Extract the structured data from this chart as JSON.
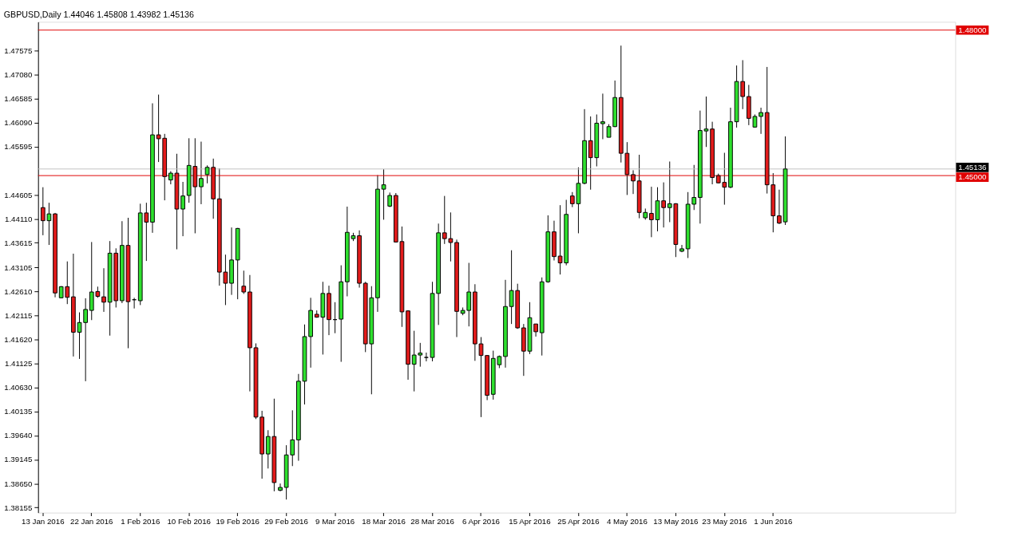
{
  "chart_data": {
    "type": "candlestick",
    "title": "GBPUSD,Daily 1.44046 1.45808 1.43982 1.45136",
    "categories": [
      "13 Jan 2016",
      null,
      null,
      null,
      null,
      null,
      null,
      null,
      "22 Jan 2016",
      null,
      null,
      null,
      null,
      null,
      null,
      null,
      "1 Feb 2016",
      null,
      null,
      null,
      null,
      null,
      null,
      null,
      "10 Feb 2016",
      null,
      null,
      null,
      null,
      null,
      null,
      null,
      "19 Feb 2016",
      null,
      null,
      null,
      null,
      null,
      null,
      null,
      "29 Feb 2016",
      null,
      null,
      null,
      null,
      null,
      null,
      null,
      "9 Mar 2016",
      null,
      null,
      null,
      null,
      null,
      null,
      null,
      "18 Mar 2016",
      null,
      null,
      null,
      null,
      null,
      null,
      null,
      "28 Mar 2016",
      null,
      null,
      null,
      null,
      null,
      null,
      null,
      "6 Apr 2016",
      null,
      null,
      null,
      null,
      null,
      null,
      null,
      "15 Apr 2016",
      null,
      null,
      null,
      null,
      null,
      null,
      null,
      "25 Apr 2016",
      null,
      null,
      null,
      null,
      null,
      null,
      null,
      "4 May 2016",
      null,
      null,
      null,
      null,
      null,
      null,
      null,
      "13 May 2016",
      null,
      null,
      null,
      null,
      null,
      null,
      null,
      "23 May 2016",
      null,
      null,
      null,
      null,
      null,
      null,
      null,
      "1 Jun 2016",
      null,
      null
    ],
    "ohlc": [
      [
        1.4434,
        1.4476,
        1.4377,
        1.4407
      ],
      [
        1.4407,
        1.4444,
        1.4357,
        1.4421
      ],
      [
        1.4421,
        1.4423,
        1.4249,
        1.4258
      ],
      [
        1.4248,
        1.4272,
        1.4247,
        1.4271
      ],
      [
        1.4271,
        1.4323,
        1.4235,
        1.4249
      ],
      [
        1.425,
        1.4339,
        1.4127,
        1.4177
      ],
      [
        1.4177,
        1.4218,
        1.4122,
        1.4197
      ],
      [
        1.4197,
        1.4247,
        1.4076,
        1.4224
      ],
      [
        1.4222,
        1.4363,
        1.4202,
        1.426
      ],
      [
        1.4261,
        1.4271,
        1.4248,
        1.4251
      ],
      [
        1.425,
        1.4309,
        1.4219,
        1.4239
      ],
      [
        1.4239,
        1.4365,
        1.417,
        1.434
      ],
      [
        1.434,
        1.435,
        1.4228,
        1.4242
      ],
      [
        1.4242,
        1.4406,
        1.4237,
        1.4356
      ],
      [
        1.4356,
        1.4413,
        1.4144,
        1.424
      ],
      [
        1.4244,
        1.4248,
        1.4226,
        1.4244
      ],
      [
        1.4242,
        1.4442,
        1.4233,
        1.4423
      ],
      [
        1.4423,
        1.4444,
        1.4324,
        1.4404
      ],
      [
        1.4404,
        1.4649,
        1.4382,
        1.4584
      ],
      [
        1.4584,
        1.4667,
        1.4528,
        1.4576
      ],
      [
        1.4577,
        1.4586,
        1.4449,
        1.4498
      ],
      [
        1.4491,
        1.4509,
        1.4482,
        1.4505
      ],
      [
        1.4505,
        1.4545,
        1.4348,
        1.4431
      ],
      [
        1.4431,
        1.4487,
        1.4375,
        1.4458
      ],
      [
        1.4459,
        1.4577,
        1.4444,
        1.4521
      ],
      [
        1.4519,
        1.4577,
        1.4381,
        1.4477
      ],
      [
        1.4477,
        1.457,
        1.4441,
        1.4494
      ],
      [
        1.4502,
        1.4521,
        1.4484,
        1.4517
      ],
      [
        1.4517,
        1.4535,
        1.4411,
        1.4452
      ],
      [
        1.4452,
        1.4515,
        1.4273,
        1.4301
      ],
      [
        1.4301,
        1.4337,
        1.4233,
        1.4278
      ],
      [
        1.4278,
        1.4393,
        1.4254,
        1.4326
      ],
      [
        1.4326,
        1.4392,
        1.4245,
        1.4391
      ],
      [
        1.4272,
        1.4304,
        1.4256,
        1.426
      ],
      [
        1.426,
        1.4295,
        1.4055,
        1.4145
      ],
      [
        1.4145,
        1.4154,
        1.3998,
        1.4002
      ],
      [
        1.4002,
        1.4015,
        1.3875,
        1.3926
      ],
      [
        1.3926,
        1.3975,
        1.3896,
        1.3962
      ],
      [
        1.3962,
        1.404,
        1.3849,
        1.3867
      ],
      [
        1.3851,
        1.3865,
        1.3849,
        1.3857
      ],
      [
        1.3857,
        1.3944,
        1.3832,
        1.3924
      ],
      [
        1.3924,
        1.4016,
        1.3901,
        1.3955
      ],
      [
        1.3955,
        1.4091,
        1.3912,
        1.4076
      ],
      [
        1.4076,
        1.4193,
        1.4028,
        1.4168
      ],
      [
        1.4168,
        1.4248,
        1.4104,
        1.4222
      ],
      [
        1.4214,
        1.4222,
        1.4207,
        1.4208
      ],
      [
        1.4208,
        1.4281,
        1.4131,
        1.4257
      ],
      [
        1.4257,
        1.4273,
        1.4171,
        1.4203
      ],
      [
        1.4203,
        1.4239,
        1.4175,
        1.4203
      ],
      [
        1.4204,
        1.4315,
        1.4116,
        1.4281
      ],
      [
        1.4281,
        1.4436,
        1.4251,
        1.4383
      ],
      [
        1.437,
        1.4382,
        1.4365,
        1.4376
      ],
      [
        1.4376,
        1.4387,
        1.4269,
        1.4278
      ],
      [
        1.4278,
        1.4281,
        1.4136,
        1.4153
      ],
      [
        1.4153,
        1.4272,
        1.4049,
        1.4248
      ],
      [
        1.4248,
        1.4501,
        1.4219,
        1.4472
      ],
      [
        1.4472,
        1.4513,
        1.4409,
        1.4481
      ],
      [
        1.4437,
        1.4465,
        1.4435,
        1.4459
      ],
      [
        1.4459,
        1.4464,
        1.4362,
        1.4363
      ],
      [
        1.4364,
        1.4395,
        1.4188,
        1.4219
      ],
      [
        1.4221,
        1.4222,
        1.4079,
        1.4111
      ],
      [
        1.4111,
        1.418,
        1.4055,
        1.413
      ],
      [
        1.413,
        1.4155,
        1.4106,
        1.4134
      ],
      [
        1.4125,
        1.4135,
        1.4117,
        1.4125
      ],
      [
        1.4125,
        1.4281,
        1.4117,
        1.4257
      ],
      [
        1.4257,
        1.4401,
        1.4192,
        1.4382
      ],
      [
        1.4382,
        1.4458,
        1.4359,
        1.437
      ],
      [
        1.437,
        1.4424,
        1.4323,
        1.4362
      ],
      [
        1.4362,
        1.4368,
        1.4167,
        1.422
      ],
      [
        1.4216,
        1.4228,
        1.4212,
        1.4222
      ],
      [
        1.4222,
        1.432,
        1.4189,
        1.426
      ],
      [
        1.426,
        1.4276,
        1.4118,
        1.4153
      ],
      [
        1.4153,
        1.4167,
        1.4002,
        1.4129
      ],
      [
        1.4129,
        1.413,
        1.4037,
        1.4047
      ],
      [
        1.4049,
        1.4139,
        1.4038,
        1.4123
      ],
      [
        1.411,
        1.4129,
        1.4103,
        1.4127
      ],
      [
        1.4127,
        1.4285,
        1.4104,
        1.423
      ],
      [
        1.423,
        1.4346,
        1.4194,
        1.4263
      ],
      [
        1.4263,
        1.4277,
        1.4184,
        1.4186
      ],
      [
        1.4186,
        1.4194,
        1.4087,
        1.4138
      ],
      [
        1.4138,
        1.4239,
        1.4132,
        1.4207
      ],
      [
        1.4194,
        1.4194,
        1.4168,
        1.4178
      ],
      [
        1.4176,
        1.429,
        1.4129,
        1.4281
      ],
      [
        1.4281,
        1.4418,
        1.4279,
        1.4384
      ],
      [
        1.4384,
        1.4407,
        1.4325,
        1.4333
      ],
      [
        1.4334,
        1.4439,
        1.4296,
        1.432
      ],
      [
        1.432,
        1.445,
        1.4315,
        1.442
      ],
      [
        1.4458,
        1.4466,
        1.4435,
        1.4442
      ],
      [
        1.4442,
        1.4517,
        1.4381,
        1.4484
      ],
      [
        1.4484,
        1.4637,
        1.4482,
        1.4572
      ],
      [
        1.4572,
        1.4622,
        1.4471,
        1.4537
      ],
      [
        1.4537,
        1.4626,
        1.4519,
        1.4608
      ],
      [
        1.4607,
        1.4669,
        1.4575,
        1.4611
      ],
      [
        1.4579,
        1.4606,
        1.4579,
        1.4601
      ],
      [
        1.4601,
        1.4696,
        1.46,
        1.4661
      ],
      [
        1.4661,
        1.4768,
        1.4527,
        1.4546
      ],
      [
        1.4546,
        1.4569,
        1.446,
        1.4502
      ],
      [
        1.4502,
        1.4511,
        1.4462,
        1.4489
      ],
      [
        1.4489,
        1.4543,
        1.4412,
        1.4424
      ],
      [
        1.4413,
        1.4432,
        1.4409,
        1.4424
      ],
      [
        1.4422,
        1.4477,
        1.4373,
        1.4409
      ],
      [
        1.4409,
        1.4476,
        1.4385,
        1.4448
      ],
      [
        1.4448,
        1.4486,
        1.4393,
        1.4434
      ],
      [
        1.4434,
        1.4529,
        1.4404,
        1.4442
      ],
      [
        1.4442,
        1.4443,
        1.4332,
        1.4358
      ],
      [
        1.4344,
        1.4357,
        1.4342,
        1.4349
      ],
      [
        1.4349,
        1.4466,
        1.433,
        1.4441
      ],
      [
        1.4441,
        1.4522,
        1.4429,
        1.4455
      ],
      [
        1.4455,
        1.4634,
        1.4401,
        1.4593
      ],
      [
        1.4592,
        1.4663,
        1.4559,
        1.4596
      ],
      [
        1.4596,
        1.4611,
        1.4482,
        1.4496
      ],
      [
        1.45,
        1.4504,
        1.4484,
        1.4485
      ],
      [
        1.4486,
        1.4547,
        1.444,
        1.4476
      ],
      [
        1.4476,
        1.464,
        1.4474,
        1.4611
      ],
      [
        1.4611,
        1.4727,
        1.4599,
        1.4694
      ],
      [
        1.4694,
        1.4738,
        1.4637,
        1.4663
      ],
      [
        1.4663,
        1.4687,
        1.4604,
        1.4618
      ],
      [
        1.46,
        1.4626,
        1.4599,
        1.4622
      ],
      [
        1.4622,
        1.464,
        1.4586,
        1.463
      ],
      [
        1.463,
        1.4724,
        1.4463,
        1.4481
      ],
      [
        1.4481,
        1.4505,
        1.4383,
        1.4417
      ],
      [
        1.4417,
        1.4471,
        1.44,
        1.4402
      ],
      [
        1.44046,
        1.45808,
        1.43982,
        1.45136
      ]
    ],
    "colors": [
      "#e21b1b",
      "#2ee02e",
      "#e21b1b",
      "#2ee02e",
      "#e21b1b",
      "#e21b1b",
      "#2ee02e",
      "#2ee02e",
      "#2ee02e",
      "#e21b1b",
      "#e21b1b",
      "#2ee02e",
      "#e21b1b",
      "#2ee02e",
      "#e21b1b",
      "#000000",
      "#2ee02e",
      "#e21b1b",
      "#2ee02e",
      "#e21b1b",
      "#e21b1b",
      "#2ee02e",
      "#e21b1b",
      "#2ee02e",
      "#2ee02e",
      "#e21b1b",
      "#2ee02e",
      "#2ee02e",
      "#e21b1b",
      "#e21b1b",
      "#e21b1b",
      "#2ee02e",
      "#2ee02e",
      "#e21b1b",
      "#e21b1b",
      "#e21b1b",
      "#e21b1b",
      "#2ee02e",
      "#e21b1b",
      "#2ee02e",
      "#2ee02e",
      "#2ee02e",
      "#2ee02e",
      "#2ee02e",
      "#2ee02e",
      "#e21b1b",
      "#2ee02e",
      "#e21b1b",
      "#000000",
      "#2ee02e",
      "#2ee02e",
      "#2ee02e",
      "#e21b1b",
      "#e21b1b",
      "#2ee02e",
      "#2ee02e",
      "#2ee02e",
      "#2ee02e",
      "#e21b1b",
      "#e21b1b",
      "#e21b1b",
      "#2ee02e",
      "#2ee02e",
      "#000000",
      "#2ee02e",
      "#2ee02e",
      "#e21b1b",
      "#e21b1b",
      "#e21b1b",
      "#2ee02e",
      "#2ee02e",
      "#e21b1b",
      "#e21b1b",
      "#e21b1b",
      "#2ee02e",
      "#2ee02e",
      "#2ee02e",
      "#2ee02e",
      "#e21b1b",
      "#e21b1b",
      "#2ee02e",
      "#e21b1b",
      "#2ee02e",
      "#2ee02e",
      "#e21b1b",
      "#e21b1b",
      "#2ee02e",
      "#e21b1b",
      "#2ee02e",
      "#2ee02e",
      "#e21b1b",
      "#2ee02e",
      "#2ee02e",
      "#2ee02e",
      "#2ee02e",
      "#e21b1b",
      "#e21b1b",
      "#e21b1b",
      "#e21b1b",
      "#2ee02e",
      "#e21b1b",
      "#2ee02e",
      "#e21b1b",
      "#2ee02e",
      "#e21b1b",
      "#2ee02e",
      "#2ee02e",
      "#2ee02e",
      "#2ee02e",
      "#2ee02e",
      "#e21b1b",
      "#e21b1b",
      "#e21b1b",
      "#2ee02e",
      "#2ee02e",
      "#e21b1b",
      "#e21b1b",
      "#2ee02e",
      "#2ee02e",
      "#e21b1b",
      "#e21b1b",
      "#e21b1b",
      "#2ee02e"
    ],
    "ylim": [
      1.3805,
      1.4817
    ],
    "yticks": [
      1.47575,
      {
        "value": 1.4708,
        "label": "1.47080"
      },
      1.46585,
      {
        "value": 1.4609,
        "label": "1.46090"
      },
      1.45595,
      1.44605,
      {
        "value": 1.4411,
        "label": "1.44110"
      },
      1.43615,
      1.43105,
      {
        "value": 1.4261,
        "label": "1.42610"
      },
      1.42115,
      {
        "value": 1.4162,
        "label": "1.41620"
      },
      1.41125,
      {
        "value": 1.4063,
        "label": "1.40630"
      },
      1.40135,
      {
        "value": 1.3964,
        "label": "1.39640"
      },
      1.39145,
      {
        "value": 1.3865,
        "label": "1.38650"
      },
      1.38155
    ],
    "ref_lines": [
      {
        "axis": "y",
        "value": 1.48,
        "label": "1.48000",
        "color": "#e00000"
      },
      {
        "axis": "y",
        "value": 1.45136,
        "label": "1.45136",
        "color": "#c0c0c0"
      },
      {
        "axis": "y",
        "value": 1.45,
        "label": "1.45000",
        "color": "#e00000"
      }
    ],
    "grid": false
  }
}
